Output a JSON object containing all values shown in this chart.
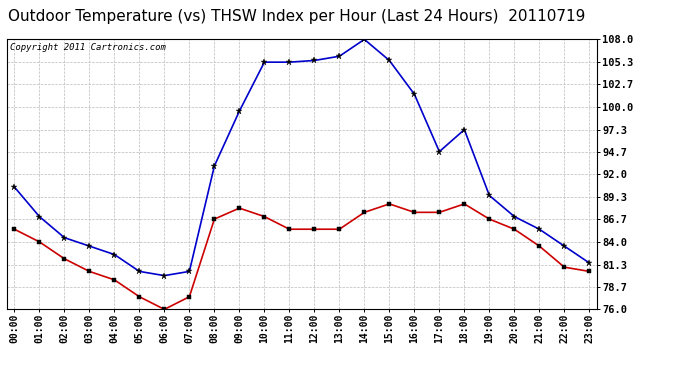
{
  "title": "Outdoor Temperature (vs) THSW Index per Hour (Last 24 Hours)  20110719",
  "copyright": "Copyright 2011 Cartronics.com",
  "hours": [
    "00:00",
    "01:00",
    "02:00",
    "03:00",
    "04:00",
    "05:00",
    "06:00",
    "07:00",
    "08:00",
    "09:00",
    "10:00",
    "11:00",
    "12:00",
    "13:00",
    "14:00",
    "15:00",
    "16:00",
    "17:00",
    "18:00",
    "19:00",
    "20:00",
    "21:00",
    "22:00",
    "23:00"
  ],
  "blue_thsw": [
    90.5,
    87.0,
    84.5,
    83.5,
    82.5,
    80.5,
    80.0,
    80.5,
    93.0,
    99.5,
    105.3,
    105.3,
    105.5,
    106.0,
    108.0,
    105.5,
    101.5,
    94.7,
    97.3,
    89.5,
    87.0,
    85.5,
    83.5,
    81.5
  ],
  "red_temp": [
    85.5,
    84.0,
    82.0,
    80.5,
    79.5,
    77.5,
    76.0,
    77.5,
    86.7,
    88.0,
    87.0,
    85.5,
    85.5,
    85.5,
    87.5,
    88.5,
    87.5,
    87.5,
    88.5,
    86.7,
    85.5,
    83.5,
    81.0,
    80.5
  ],
  "yticks": [
    76.0,
    78.7,
    81.3,
    84.0,
    86.7,
    89.3,
    92.0,
    94.7,
    97.3,
    100.0,
    102.7,
    105.3,
    108.0
  ],
  "ylim": [
    76.0,
    108.0
  ],
  "bg_color": "#ffffff",
  "plot_bg": "#ffffff",
  "blue_color": "#0000cc",
  "red_color": "#cc0000",
  "grid_color": "#bbbbbb",
  "title_fontsize": 11,
  "copyright_fontsize": 6.5,
  "tick_fontsize": 7,
  "ytick_fontsize": 7.5
}
